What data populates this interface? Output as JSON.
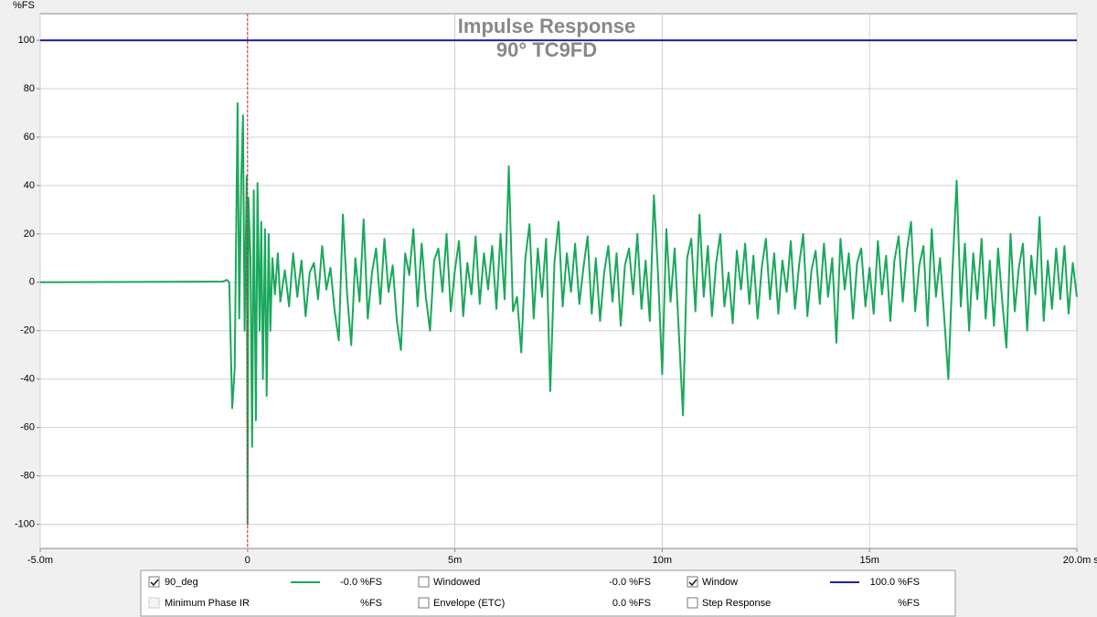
{
  "chart_data": {
    "type": "line",
    "title": "Impulse Response",
    "subtitle": "90° TC9FD",
    "y_unit": "%FS",
    "x_unit": "s",
    "xlim": [
      -5,
      20
    ],
    "ylim": [
      -110,
      111
    ],
    "xticks": [
      {
        "value": -5,
        "label": "-5.0m"
      },
      0,
      {
        "value": 5,
        "label": "5m"
      },
      {
        "value": 10,
        "label": "10m"
      },
      {
        "value": 15,
        "label": "15m"
      },
      {
        "value": 20,
        "label": "20.0m"
      }
    ],
    "yticks": [
      -100,
      -80,
      -60,
      -40,
      -20,
      0,
      20,
      40,
      60,
      80,
      100
    ],
    "grid": true,
    "marker_x": 0,
    "marker_color": "#e02020",
    "series": [
      {
        "name": "90_deg",
        "color": "#1aa85c",
        "x": [
          -5,
          -0.6,
          -0.5,
          -0.44,
          -0.37,
          -0.31,
          -0.24,
          -0.2,
          -0.15,
          -0.11,
          -0.07,
          -0.02,
          0,
          0.02,
          0.07,
          0.11,
          0.15,
          0.2,
          0.24,
          0.29,
          0.33,
          0.37,
          0.42,
          0.46,
          0.51,
          0.55,
          0.6,
          0.66,
          0.73,
          0.79,
          0.9,
          1.0,
          1.1,
          1.2,
          1.3,
          1.4,
          1.5,
          1.6,
          1.7,
          1.8,
          1.9,
          2.0,
          2.1,
          2.2,
          2.3,
          2.4,
          2.5,
          2.6,
          2.7,
          2.8,
          2.9,
          3.0,
          3.1,
          3.2,
          3.3,
          3.4,
          3.5,
          3.6,
          3.7,
          3.8,
          3.9,
          4.0,
          4.1,
          4.2,
          4.3,
          4.4,
          4.5,
          4.6,
          4.7,
          4.8,
          4.9,
          5.0,
          5.1,
          5.2,
          5.3,
          5.4,
          5.5,
          5.6,
          5.7,
          5.8,
          5.9,
          6.0,
          6.1,
          6.2,
          6.3,
          6.4,
          6.5,
          6.6,
          6.7,
          6.8,
          6.9,
          7.0,
          7.1,
          7.2,
          7.3,
          7.4,
          7.5,
          7.6,
          7.7,
          7.8,
          7.9,
          8.0,
          8.1,
          8.2,
          8.3,
          8.4,
          8.5,
          8.6,
          8.7,
          8.8,
          8.9,
          9.0,
          9.1,
          9.2,
          9.3,
          9.4,
          9.5,
          9.6,
          9.7,
          9.8,
          9.9,
          10.0,
          10.1,
          10.2,
          10.3,
          10.4,
          10.5,
          10.6,
          10.7,
          10.8,
          10.9,
          11.0,
          11.1,
          11.2,
          11.3,
          11.4,
          11.5,
          11.6,
          11.7,
          11.8,
          11.9,
          12.0,
          12.1,
          12.2,
          12.3,
          12.4,
          12.5,
          12.6,
          12.7,
          12.8,
          12.9,
          13.0,
          13.1,
          13.2,
          13.3,
          13.4,
          13.5,
          13.6,
          13.7,
          13.8,
          13.9,
          14.0,
          14.1,
          14.2,
          14.3,
          14.4,
          14.5,
          14.6,
          14.7,
          14.8,
          14.9,
          15.0,
          15.1,
          15.2,
          15.3,
          15.4,
          15.5,
          15.6,
          15.7,
          15.8,
          15.9,
          16.0,
          16.1,
          16.2,
          16.3,
          16.4,
          16.5,
          16.6,
          16.7,
          16.8,
          16.9,
          17.0,
          17.1,
          17.2,
          17.3,
          17.4,
          17.5,
          17.6,
          17.7,
          17.8,
          17.9,
          18.0,
          18.1,
          18.2,
          18.3,
          18.4,
          18.5,
          18.6,
          18.7,
          18.8,
          18.9,
          19.0,
          19.1,
          19.2,
          19.3,
          19.4,
          19.5,
          19.6,
          19.7,
          19.8,
          19.9,
          20.0
        ],
        "values": [
          0,
          0.3,
          1,
          0,
          -52,
          -36,
          74,
          -15,
          44,
          69,
          -20,
          44,
          -100,
          35,
          10,
          -68,
          38,
          -57,
          41,
          -20,
          25,
          -40,
          22,
          -47,
          20,
          -20,
          10,
          -5,
          12,
          -8,
          5,
          -10,
          12,
          -6,
          9,
          -14,
          4,
          8,
          -7,
          15,
          -3,
          6,
          -12,
          -24,
          28,
          -5,
          -26,
          10,
          -8,
          26,
          -15,
          4,
          14,
          -9,
          18,
          -4,
          7,
          -16,
          -28,
          12,
          3,
          22,
          -10,
          16,
          -6,
          -20,
          9,
          14,
          -4,
          20,
          -12,
          5,
          17,
          -14,
          8,
          -5,
          19,
          -9,
          12,
          -3,
          15,
          -11,
          20,
          -7,
          48,
          -12,
          -6,
          -29,
          10,
          24,
          -15,
          14,
          -6,
          18,
          -45,
          8,
          25,
          -10,
          12,
          -4,
          16,
          -9,
          6,
          19,
          -13,
          10,
          -16,
          4,
          15,
          -8,
          12,
          -18,
          7,
          14,
          -5,
          20,
          -11,
          9,
          -16,
          36,
          3,
          -38,
          22,
          -8,
          14,
          -20,
          -55,
          10,
          18,
          -12,
          28,
          -6,
          15,
          -14,
          8,
          20,
          -10,
          4,
          -17,
          13,
          -3,
          16,
          -9,
          11,
          -15,
          6,
          18,
          -7,
          12,
          -13,
          9,
          -4,
          17,
          -11,
          7,
          20,
          -14,
          5,
          13,
          -9,
          16,
          -6,
          10,
          -25,
          18,
          -3,
          12,
          -15,
          8,
          14,
          -10,
          6,
          -13,
          17,
          -5,
          11,
          -16,
          9,
          19,
          -8,
          13,
          25,
          -12,
          7,
          15,
          -18,
          22,
          -6,
          10,
          -14,
          -40,
          5,
          42,
          -10,
          16,
          -20,
          12,
          -7,
          18,
          -15,
          9,
          -18,
          14,
          -8,
          -27,
          20,
          -12,
          6,
          16,
          -20,
          11,
          -5,
          27,
          -16,
          9,
          -11,
          14,
          -7,
          15,
          -13,
          8,
          -6
        ]
      },
      {
        "name": "Window",
        "color": "#1f1fa8",
        "x": [
          -5,
          20
        ],
        "values": [
          100,
          100
        ]
      }
    ]
  },
  "legend": {
    "rows": [
      [
        {
          "name": "90_deg",
          "checked": true,
          "color": "#1aa85c",
          "line": true,
          "value": "-0.0 %FS"
        },
        {
          "name": "Windowed",
          "checked": false,
          "color": "#5fd08a",
          "line": false,
          "value": "-0.0 %FS"
        },
        {
          "name": "Window",
          "checked": true,
          "color": "#1f1fa8",
          "line": true,
          "value": "100.0 %FS"
        }
      ],
      [
        {
          "name": "Minimum Phase IR",
          "checked": false,
          "disabled": true,
          "color": "#a0a0a0",
          "line": false,
          "value": "%FS"
        },
        {
          "name": "Envelope (ETC)",
          "checked": false,
          "color": "#1a6a3a",
          "line": false,
          "value": "0.0 %FS"
        },
        {
          "name": "Step Response",
          "checked": false,
          "color": "#333333",
          "line": false,
          "value": "%FS"
        }
      ]
    ]
  }
}
